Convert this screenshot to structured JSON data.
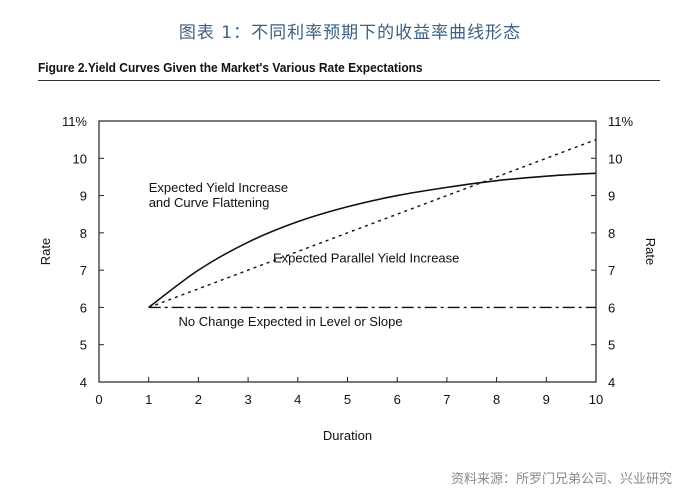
{
  "page_title": "图表 1：不同利率预期下的收益率曲线形态",
  "figure_title": "Figure 2.Yield Curves Given the Market's Various Rate Expectations",
  "source": "资料来源：所罗门兄弟公司、兴业研究",
  "chart_data": {
    "type": "line",
    "xlabel": "Duration",
    "ylabel": "Rate",
    "xlim": [
      0,
      10
    ],
    "ylim": [
      4,
      11
    ],
    "x_ticks": [
      "0",
      "1",
      "2",
      "3",
      "4",
      "5",
      "6",
      "7",
      "8",
      "9",
      "10"
    ],
    "y_ticks": [
      "4",
      "5",
      "6",
      "7",
      "8",
      "9",
      "10",
      "11%"
    ],
    "grid": false,
    "series": [
      {
        "name": "Expected Yield Increase and Curve Flattening",
        "style": "solid",
        "x": [
          1,
          2,
          3,
          4,
          5,
          6,
          7,
          8,
          9,
          10
        ],
        "y": [
          6.0,
          7.0,
          7.75,
          8.3,
          8.7,
          9.0,
          9.22,
          9.4,
          9.52,
          9.6
        ]
      },
      {
        "name": "Expected Parallel Yield Increase",
        "style": "dotted",
        "x": [
          1,
          10
        ],
        "y": [
          6.0,
          10.5
        ]
      },
      {
        "name": "No Change Expected in Level or Slope",
        "style": "dashdot",
        "x": [
          1,
          10
        ],
        "y": [
          6.0,
          6.0
        ]
      }
    ],
    "annotations": [
      {
        "text": "Expected Yield Increase",
        "x": 1.0,
        "y": 9.1
      },
      {
        "text": "and Curve Flattening",
        "x": 1.0,
        "y": 8.7
      },
      {
        "text": "Expected Parallel Yield Increase",
        "x": 3.5,
        "y": 7.2
      },
      {
        "text": "No Change Expected in Level or Slope",
        "x": 1.6,
        "y": 5.5
      }
    ]
  }
}
